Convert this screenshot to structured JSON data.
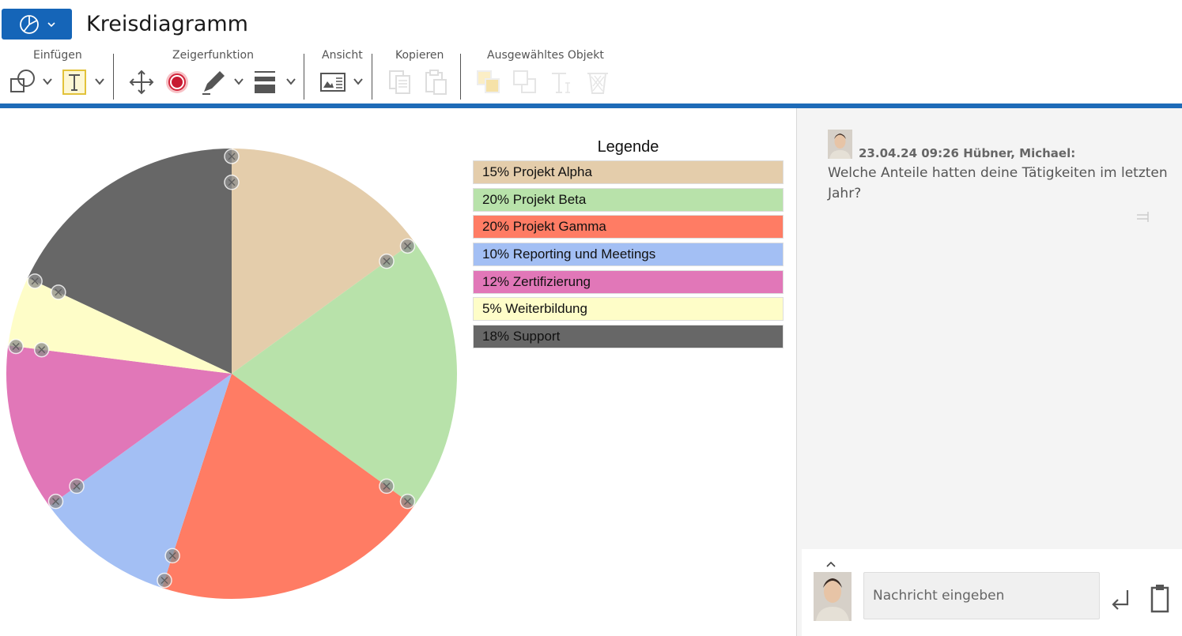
{
  "header": {
    "title": "Kreisdiagramm",
    "groups": {
      "insert": "Einfügen",
      "pointer": "Zeigerfunktion",
      "view": "Ansicht",
      "copy": "Kopieren",
      "selected": "Ausgewähltes Objekt"
    }
  },
  "colors": {
    "accent": "#1e6bb8",
    "alpha": "#e4cdab",
    "beta": "#b8e2aa",
    "gamma": "#ff7c64",
    "reporting": "#a3bff4",
    "zert": "#e177b8",
    "weiter": "#fefdc8",
    "support": "#676767"
  },
  "chart_data": {
    "type": "pie",
    "title": "Legende",
    "legend": "right",
    "slices": [
      {
        "label": "15% Projekt Alpha",
        "value": 15,
        "color": "#e4cdab"
      },
      {
        "label": "20% Projekt Beta",
        "value": 20,
        "color": "#b8e2aa"
      },
      {
        "label": "20% Projekt Gamma",
        "value": 20,
        "color": "#ff7c64"
      },
      {
        "label": "10% Reporting und Meetings",
        "value": 10,
        "color": "#a3bff4"
      },
      {
        "label": "12% Zertifizierung",
        "value": 12,
        "color": "#e177b8"
      },
      {
        "label": "5% Weiterbildung",
        "value": 5,
        "color": "#fefdc8"
      },
      {
        "label": "18% Support",
        "value": 18,
        "color": "#676767"
      }
    ]
  },
  "chat": {
    "messages": [
      {
        "meta": "23.04.24 09:26 Hübner, Michael:",
        "text": "Welche Anteile hatten deine Tätigkeiten im letzten Jahr?"
      }
    ],
    "input_placeholder": "Nachricht eingeben"
  }
}
